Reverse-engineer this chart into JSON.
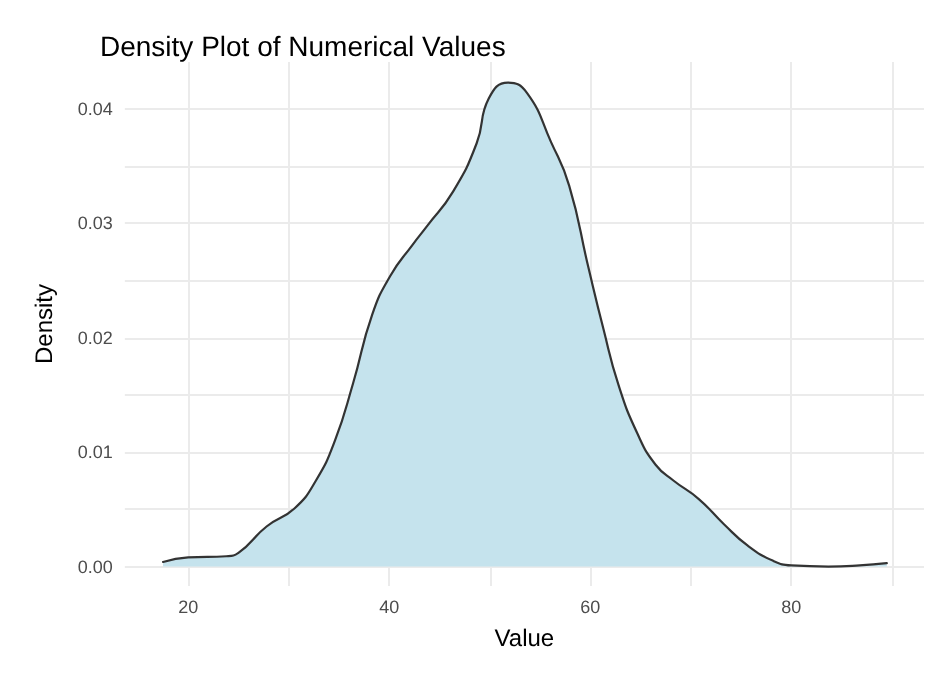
{
  "chart_data": {
    "type": "area",
    "title": "Density Plot of Numerical Values",
    "xlabel": "Value",
    "ylabel": "Density",
    "x": [
      17.5,
      20,
      23.8,
      25,
      27.8,
      30.6,
      32.7,
      34.6,
      36.4,
      38.3,
      40.1,
      42.3,
      43.8,
      46.3,
      48.7,
      49.9,
      51.8,
      53.7,
      56.1,
      57.9,
      59.8,
      61.3,
      62.8,
      64.7,
      66.5,
      68.3,
      70.8,
      73.3,
      75.7,
      78.2,
      80,
      83.7,
      86.8,
      89.5
    ],
    "series": [
      {
        "color": "#c5e3ed",
        "values": [
          0.0004,
          0.0008,
          0.0009,
          0.0012,
          0.0035,
          0.0051,
          0.0075,
          0.011,
          0.016,
          0.022,
          0.0254,
          0.0281,
          0.0298,
          0.0327,
          0.037,
          0.0409,
          0.0423,
          0.0414,
          0.0371,
          0.0333,
          0.0262,
          0.0208,
          0.0159,
          0.0116,
          0.0089,
          0.0075,
          0.0059,
          0.0037,
          0.0018,
          0.0005,
          0.0001,
          0,
          0.0001,
          0.0003
        ]
      }
    ],
    "xlim": [
      13.7,
      93.2
    ],
    "xticks": [
      20,
      {
        "value": 30,
        "label": null
      },
      40,
      {
        "value": 50,
        "label": null
      },
      60,
      {
        "value": 70,
        "label": null
      },
      80,
      {
        "value": 90,
        "label": null
      }
    ],
    "ylim": [
      -0.0017,
      0.0441
    ],
    "yticks": [
      {
        "value": 0,
        "label": "0.00"
      },
      {
        "value": 0.005,
        "label": null
      },
      {
        "value": 0.01,
        "label": "0.01"
      },
      {
        "value": 0.015,
        "label": null
      },
      {
        "value": 0.02,
        "label": "0.02"
      },
      {
        "value": 0.025,
        "label": null
      },
      {
        "value": 0.03,
        "label": "0.03"
      },
      {
        "value": 0.035,
        "label": null
      },
      {
        "value": 0.04,
        "label": "0.04"
      }
    ],
    "grid": true,
    "marker": "none",
    "line_style": "solid"
  }
}
